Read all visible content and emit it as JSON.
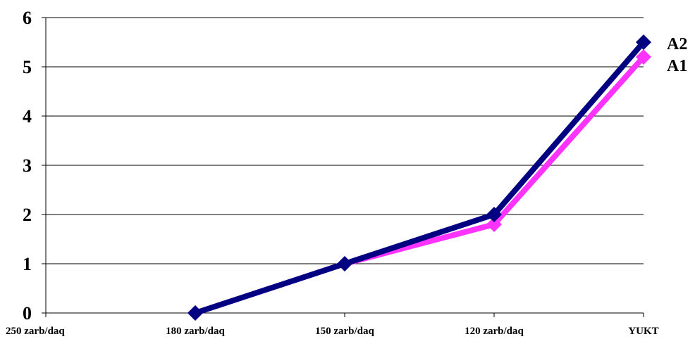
{
  "chart_data": {
    "type": "line",
    "title": "",
    "xlabel": "",
    "ylabel": "",
    "categories": [
      "250 zarb/daq",
      "180 zarb/daq",
      "150 zarb/daq",
      "120 zarb/daq",
      "YUKT"
    ],
    "ylim": [
      0,
      6
    ],
    "yticks": [
      "0",
      "1",
      "2",
      "3",
      "4",
      "5",
      "6"
    ],
    "grid": true,
    "series": [
      {
        "name": "A1",
        "color": "#ff33ff",
        "values": [
          null,
          0,
          1,
          1.8,
          5.2
        ]
      },
      {
        "name": "A2",
        "color": "#000080",
        "values": [
          null,
          0,
          1,
          2,
          5.5
        ]
      }
    ]
  }
}
